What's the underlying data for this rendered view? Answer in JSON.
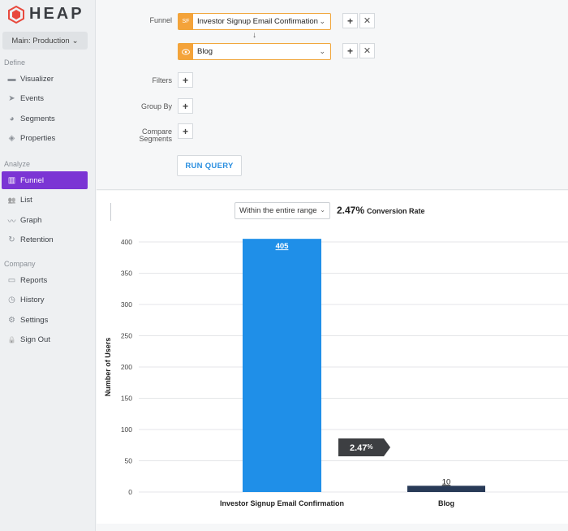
{
  "sidebar": {
    "logo": "HEAP",
    "env": "Main: Production",
    "sections": [
      {
        "label": "Define",
        "items": [
          {
            "label": "Visualizer",
            "icon": "monitor-icon"
          },
          {
            "label": "Events",
            "icon": "cursor-icon"
          },
          {
            "label": "Segments",
            "icon": "pie-icon"
          },
          {
            "label": "Properties",
            "icon": "layers-icon"
          }
        ]
      },
      {
        "label": "Analyze",
        "items": [
          {
            "label": "Funnel",
            "icon": "funnel-icon",
            "active": true
          },
          {
            "label": "List",
            "icon": "users-icon"
          },
          {
            "label": "Graph",
            "icon": "line-chart-icon"
          },
          {
            "label": "Retention",
            "icon": "refresh-icon"
          }
        ]
      },
      {
        "label": "Company",
        "items": [
          {
            "label": "Reports",
            "icon": "folder-icon"
          },
          {
            "label": "History",
            "icon": "clock-icon"
          },
          {
            "label": "Settings",
            "icon": "gear-icon"
          },
          {
            "label": "Sign Out",
            "icon": "lock-icon"
          }
        ]
      }
    ]
  },
  "builder": {
    "funnel_label": "Funnel",
    "step1": {
      "badge": "SF",
      "label": "Investor Signup Email Confirmation"
    },
    "step2": {
      "label": "Blog"
    },
    "filters_label": "Filters",
    "group_by_label": "Group By",
    "compare_label_1": "Compare",
    "compare_label_2": "Segments",
    "run_label": "RUN QUERY"
  },
  "results": {
    "range": "Within the entire range",
    "conversion_value": "2.47%",
    "conversion_label": "Conversion Rate",
    "step_conversion": "2.47",
    "step_conversion_unit": "%"
  },
  "colors": {
    "accent": "#7b35d4",
    "bar1": "#1f8fe8",
    "bar2": "#283a57",
    "orange": "#f4a33a"
  },
  "chart_data": {
    "type": "bar",
    "categories": [
      "Investor Signup Email Confirmation",
      "Blog"
    ],
    "values": [
      405,
      10
    ],
    "ylabel": "Number of Users",
    "ylim": [
      0,
      400
    ],
    "yticks": [
      0,
      50,
      100,
      150,
      200,
      250,
      300,
      350,
      400
    ],
    "data_labels": [
      "405",
      "10"
    ]
  }
}
